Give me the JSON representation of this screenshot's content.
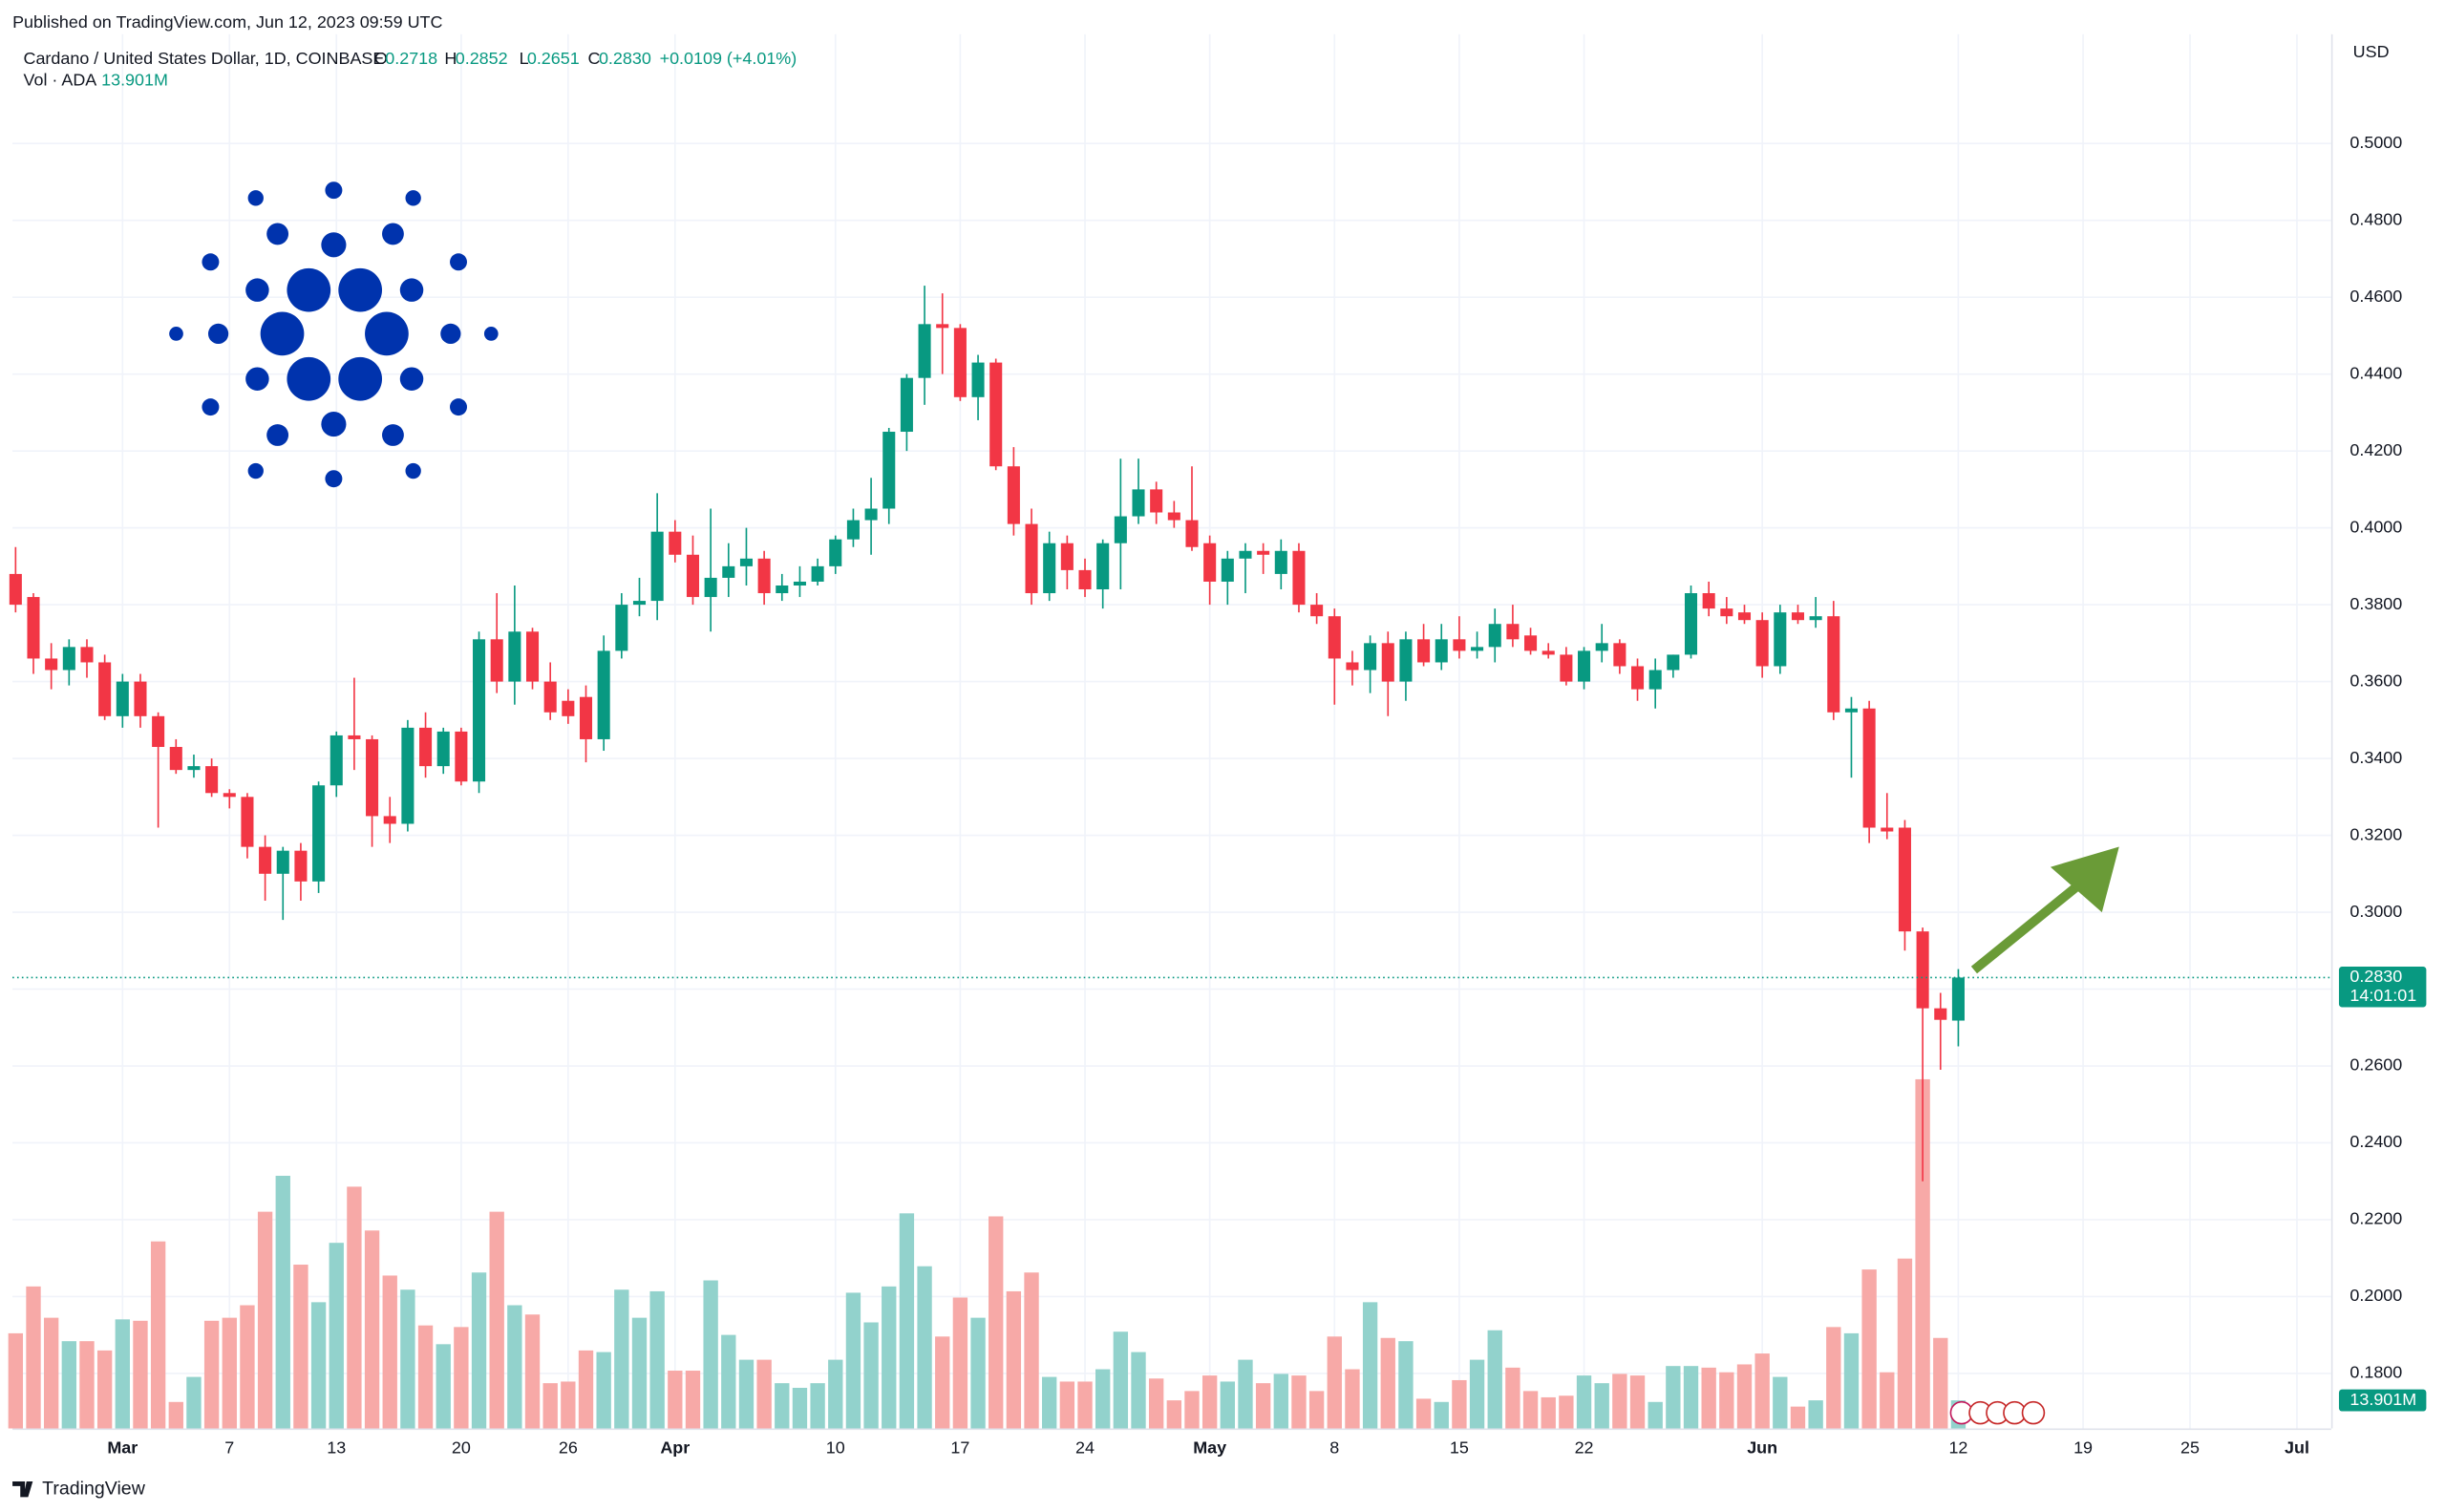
{
  "header": {
    "published": "Published on TradingView.com, Jun 12, 2023 09:59 UTC",
    "symbol": "Cardano / United States Dollar, 1D, COINBASE",
    "ohlc_letters": [
      "O",
      "H",
      "L",
      "C"
    ],
    "ohlc_values": [
      "0.2718",
      "0.2852",
      "0.2651",
      "0.2830"
    ],
    "change": "+0.0109 (+4.01%)",
    "volume_title": "Vol · ADA",
    "currency": "USD",
    "countdown": "14:01:01",
    "brand": "TradingView"
  },
  "chart_data": {
    "type": "candlestick",
    "x": [
      "2023-02-23",
      "2023-02-24",
      "2023-02-25",
      "2023-02-26",
      "2023-02-27",
      "2023-02-28",
      "2023-03-01",
      "2023-03-02",
      "2023-03-03",
      "2023-03-04",
      "2023-03-05",
      "2023-03-06",
      "2023-03-07",
      "2023-03-08",
      "2023-03-09",
      "2023-03-10",
      "2023-03-11",
      "2023-03-12",
      "2023-03-13",
      "2023-03-14",
      "2023-03-15",
      "2023-03-16",
      "2023-03-17",
      "2023-03-18",
      "2023-03-19",
      "2023-03-20",
      "2023-03-21",
      "2023-03-22",
      "2023-03-23",
      "2023-03-24",
      "2023-03-25",
      "2023-03-26",
      "2023-03-27",
      "2023-03-28",
      "2023-03-29",
      "2023-03-30",
      "2023-03-31",
      "2023-04-01",
      "2023-04-02",
      "2023-04-03",
      "2023-04-04",
      "2023-04-05",
      "2023-04-06",
      "2023-04-07",
      "2023-04-08",
      "2023-04-09",
      "2023-04-10",
      "2023-04-11",
      "2023-04-12",
      "2023-04-13",
      "2023-04-14",
      "2023-04-15",
      "2023-04-16",
      "2023-04-17",
      "2023-04-18",
      "2023-04-19",
      "2023-04-20",
      "2023-04-21",
      "2023-04-22",
      "2023-04-23",
      "2023-04-24",
      "2023-04-25",
      "2023-04-26",
      "2023-04-27",
      "2023-04-28",
      "2023-04-29",
      "2023-04-30",
      "2023-05-01",
      "2023-05-02",
      "2023-05-03",
      "2023-05-04",
      "2023-05-05",
      "2023-05-06",
      "2023-05-07",
      "2023-05-08",
      "2023-05-09",
      "2023-05-10",
      "2023-05-11",
      "2023-05-12",
      "2023-05-13",
      "2023-05-14",
      "2023-05-15",
      "2023-05-16",
      "2023-05-17",
      "2023-05-18",
      "2023-05-19",
      "2023-05-20",
      "2023-05-21",
      "2023-05-22",
      "2023-05-23",
      "2023-05-24",
      "2023-05-25",
      "2023-05-26",
      "2023-05-27",
      "2023-05-28",
      "2023-05-29",
      "2023-05-30",
      "2023-05-31",
      "2023-06-01",
      "2023-06-02",
      "2023-06-03",
      "2023-06-04",
      "2023-06-05",
      "2023-06-06",
      "2023-06-07",
      "2023-06-08",
      "2023-06-09",
      "2023-06-10",
      "2023-06-11",
      "2023-06-12"
    ],
    "open": [
      0.388,
      0.382,
      0.366,
      0.363,
      0.369,
      0.365,
      0.351,
      0.36,
      0.351,
      0.343,
      0.337,
      0.338,
      0.331,
      0.33,
      0.317,
      0.31,
      0.316,
      0.308,
      0.333,
      0.346,
      0.345,
      0.325,
      0.323,
      0.348,
      0.338,
      0.347,
      0.334,
      0.371,
      0.36,
      0.373,
      0.36,
      0.355,
      0.356,
      0.345,
      0.368,
      0.38,
      0.381,
      0.399,
      0.393,
      0.382,
      0.387,
      0.39,
      0.392,
      0.383,
      0.385,
      0.386,
      0.39,
      0.397,
      0.402,
      0.405,
      0.425,
      0.439,
      0.453,
      0.452,
      0.434,
      0.443,
      0.416,
      0.401,
      0.383,
      0.396,
      0.389,
      0.384,
      0.396,
      0.403,
      0.41,
      0.404,
      0.402,
      0.396,
      0.386,
      0.392,
      0.394,
      0.388,
      0.394,
      0.38,
      0.377,
      0.365,
      0.363,
      0.37,
      0.36,
      0.371,
      0.365,
      0.371,
      0.368,
      0.369,
      0.375,
      0.372,
      0.368,
      0.367,
      0.36,
      0.368,
      0.37,
      0.364,
      0.358,
      0.363,
      0.367,
      0.383,
      0.379,
      0.378,
      0.376,
      0.364,
      0.378,
      0.376,
      0.377,
      0.352,
      0.353,
      0.322,
      0.322,
      0.295,
      0.275,
      0.2718
    ],
    "high": [
      0.395,
      0.383,
      0.37,
      0.371,
      0.371,
      0.367,
      0.362,
      0.362,
      0.352,
      0.345,
      0.341,
      0.34,
      0.332,
      0.331,
      0.32,
      0.317,
      0.318,
      0.334,
      0.347,
      0.361,
      0.346,
      0.33,
      0.35,
      0.352,
      0.348,
      0.348,
      0.373,
      0.383,
      0.385,
      0.374,
      0.365,
      0.358,
      0.359,
      0.372,
      0.383,
      0.387,
      0.409,
      0.402,
      0.398,
      0.405,
      0.396,
      0.4,
      0.394,
      0.388,
      0.39,
      0.392,
      0.398,
      0.405,
      0.413,
      0.426,
      0.44,
      0.463,
      0.461,
      0.453,
      0.445,
      0.444,
      0.421,
      0.405,
      0.399,
      0.398,
      0.392,
      0.397,
      0.418,
      0.418,
      0.412,
      0.407,
      0.416,
      0.398,
      0.394,
      0.396,
      0.396,
      0.397,
      0.396,
      0.383,
      0.379,
      0.368,
      0.372,
      0.373,
      0.373,
      0.375,
      0.375,
      0.377,
      0.373,
      0.379,
      0.38,
      0.374,
      0.37,
      0.369,
      0.369,
      0.375,
      0.371,
      0.366,
      0.366,
      0.367,
      0.385,
      0.386,
      0.382,
      0.38,
      0.378,
      0.38,
      0.38,
      0.382,
      0.381,
      0.356,
      0.355,
      0.331,
      0.324,
      0.296,
      0.279,
      0.2852
    ],
    "low": [
      0.378,
      0.362,
      0.358,
      0.359,
      0.361,
      0.35,
      0.348,
      0.348,
      0.322,
      0.336,
      0.335,
      0.33,
      0.327,
      0.314,
      0.303,
      0.298,
      0.303,
      0.305,
      0.33,
      0.337,
      0.317,
      0.318,
      0.321,
      0.335,
      0.336,
      0.333,
      0.331,
      0.357,
      0.354,
      0.358,
      0.35,
      0.349,
      0.339,
      0.342,
      0.366,
      0.377,
      0.376,
      0.391,
      0.38,
      0.373,
      0.382,
      0.385,
      0.38,
      0.381,
      0.382,
      0.385,
      0.388,
      0.395,
      0.393,
      0.401,
      0.42,
      0.432,
      0.44,
      0.433,
      0.428,
      0.415,
      0.398,
      0.38,
      0.381,
      0.384,
      0.382,
      0.379,
      0.384,
      0.401,
      0.401,
      0.4,
      0.394,
      0.38,
      0.38,
      0.383,
      0.388,
      0.384,
      0.378,
      0.375,
      0.354,
      0.359,
      0.357,
      0.351,
      0.355,
      0.364,
      0.363,
      0.366,
      0.366,
      0.365,
      0.369,
      0.367,
      0.366,
      0.359,
      0.358,
      0.365,
      0.362,
      0.355,
      0.353,
      0.361,
      0.366,
      0.377,
      0.375,
      0.375,
      0.361,
      0.362,
      0.375,
      0.374,
      0.35,
      0.335,
      0.318,
      0.319,
      0.29,
      0.23,
      0.259,
      0.2651
    ],
    "close": [
      0.38,
      0.366,
      0.363,
      0.369,
      0.365,
      0.351,
      0.36,
      0.351,
      0.343,
      0.337,
      0.338,
      0.331,
      0.33,
      0.317,
      0.31,
      0.316,
      0.308,
      0.333,
      0.346,
      0.345,
      0.325,
      0.323,
      0.348,
      0.338,
      0.347,
      0.334,
      0.371,
      0.36,
      0.373,
      0.36,
      0.352,
      0.351,
      0.345,
      0.368,
      0.38,
      0.381,
      0.399,
      0.393,
      0.382,
      0.387,
      0.39,
      0.392,
      0.383,
      0.385,
      0.386,
      0.39,
      0.397,
      0.402,
      0.405,
      0.425,
      0.439,
      0.453,
      0.452,
      0.434,
      0.443,
      0.416,
      0.401,
      0.383,
      0.396,
      0.389,
      0.384,
      0.396,
      0.403,
      0.41,
      0.404,
      0.402,
      0.395,
      0.386,
      0.392,
      0.394,
      0.393,
      0.394,
      0.38,
      0.377,
      0.366,
      0.363,
      0.37,
      0.36,
      0.371,
      0.365,
      0.371,
      0.368,
      0.369,
      0.375,
      0.371,
      0.368,
      0.367,
      0.36,
      0.368,
      0.37,
      0.364,
      0.358,
      0.363,
      0.367,
      0.383,
      0.379,
      0.377,
      0.376,
      0.364,
      0.378,
      0.376,
      0.377,
      0.352,
      0.353,
      0.322,
      0.321,
      0.295,
      0.275,
      0.272,
      0.283
    ],
    "volume": [
      47.1,
      70.3,
      54.8,
      43.2,
      43.2,
      38.6,
      54.0,
      53.3,
      92.6,
      13.1,
      25.5,
      53.3,
      54.8,
      61.0,
      107.3,
      125.1,
      81.1,
      62.5,
      91.9,
      119.7,
      98.0,
      75.7,
      68.7,
      51.0,
      41.7,
      50.2,
      77.2,
      107.3,
      61.0,
      56.4,
      22.4,
      23.2,
      38.6,
      37.8,
      68.7,
      54.8,
      67.9,
      28.6,
      28.6,
      73.3,
      46.3,
      34.0,
      34.0,
      22.4,
      20.1,
      22.4,
      34.0,
      67.2,
      52.5,
      70.3,
      106.5,
      80.3,
      45.5,
      64.8,
      54.8,
      105.0,
      67.9,
      77.2,
      25.5,
      23.2,
      23.2,
      29.3,
      47.9,
      37.8,
      24.7,
      13.9,
      18.5,
      26.2,
      23.2,
      34.0,
      22.4,
      27.0,
      26.2,
      18.5,
      45.5,
      29.3,
      62.5,
      44.8,
      43.2,
      14.7,
      13.1,
      23.9,
      34.0,
      48.6,
      30.1,
      18.5,
      15.4,
      16.2,
      26.2,
      22.4,
      27.0,
      26.2,
      13.1,
      30.9,
      30.9,
      30.1,
      27.8,
      31.7,
      37.1,
      25.5,
      10.8,
      13.9,
      50.2,
      47.1,
      78.7,
      27.8,
      84.1,
      172.9,
      44.8,
      13.901
    ],
    "volume_label": "13.901M",
    "up_color": "#089981",
    "down_color": "#f23645",
    "volume_up_color": "#92d2cc",
    "volume_down_color": "#f7a9a7",
    "ylim": [
      0.1657,
      0.5284
    ],
    "yticks": [
      {
        "value": 0.18,
        "label": "0.1800"
      },
      {
        "value": 0.2,
        "label": "0.2000"
      },
      {
        "value": 0.22,
        "label": "0.2200"
      },
      {
        "value": 0.24,
        "label": "0.2400"
      },
      {
        "value": 0.26,
        "label": "0.2600"
      },
      {
        "value": 0.28,
        "label": "0.2800"
      },
      {
        "value": 0.3,
        "label": "0.3000"
      },
      {
        "value": 0.32,
        "label": "0.3200"
      },
      {
        "value": 0.34,
        "label": "0.3400"
      },
      {
        "value": 0.36,
        "label": "0.3600"
      },
      {
        "value": 0.38,
        "label": "0.3800"
      },
      {
        "value": 0.4,
        "label": "0.4000"
      },
      {
        "value": 0.42,
        "label": "0.4200"
      },
      {
        "value": 0.44,
        "label": "0.4400"
      },
      {
        "value": 0.46,
        "label": "0.4600"
      },
      {
        "value": 0.48,
        "label": "0.4800"
      },
      {
        "value": 0.5,
        "label": "0.5000"
      }
    ],
    "volume_lim": [
      0,
      400
    ],
    "xlim": [
      "2023-02-23",
      "2023-07-02"
    ],
    "xticks": [
      {
        "value": "2023-03-01",
        "label": "Mar"
      },
      {
        "value": "2023-03-07",
        "label": "7"
      },
      {
        "value": "2023-03-13",
        "label": "13"
      },
      {
        "value": "2023-03-20",
        "label": "20"
      },
      {
        "value": "2023-03-26",
        "label": "26"
      },
      {
        "value": "2023-04-01",
        "label": "Apr"
      },
      {
        "value": "2023-04-10",
        "label": "10"
      },
      {
        "value": "2023-04-17",
        "label": "17"
      },
      {
        "value": "2023-04-24",
        "label": "24"
      },
      {
        "value": "2023-05-01",
        "label": "May"
      },
      {
        "value": "2023-05-08",
        "label": "8"
      },
      {
        "value": "2023-05-15",
        "label": "15"
      },
      {
        "value": "2023-05-22",
        "label": "22"
      },
      {
        "value": "2023-06-01",
        "label": "Jun"
      },
      {
        "value": "2023-06-12",
        "label": "12"
      },
      {
        "value": "2023-06-19",
        "label": "19"
      },
      {
        "value": "2023-06-25",
        "label": "25"
      },
      {
        "value": "2023-07-01",
        "label": "Jul"
      }
    ],
    "grid": true
  }
}
